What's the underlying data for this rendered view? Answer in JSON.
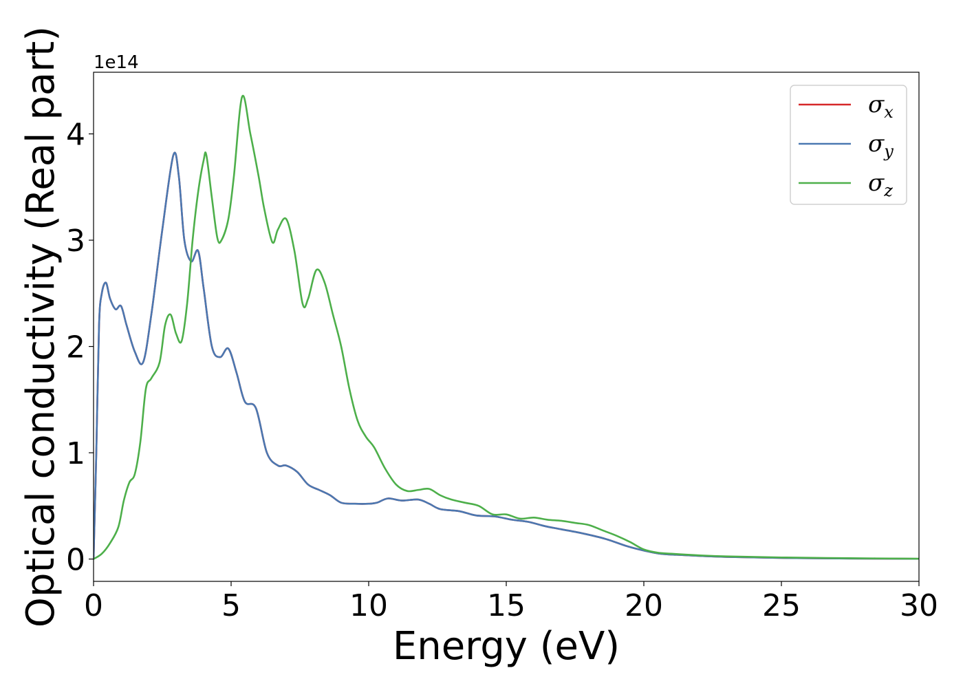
{
  "chart_data": {
    "type": "line",
    "xlabel": "Energy (eV)",
    "ylabel": "Optical conductivity (Real part)",
    "y_offset_label": "1e14",
    "xlim": [
      0,
      30
    ],
    "ylim": [
      -0.21,
      4.58
    ],
    "x_ticks": [
      0,
      5,
      10,
      15,
      20,
      25,
      30
    ],
    "y_ticks": [
      0,
      1,
      2,
      3,
      4
    ],
    "grid": false,
    "legend_position": "top-right",
    "series": [
      {
        "name": "σx",
        "symbol": "σ",
        "subscript": "x",
        "color": "#d62728",
        "x": [
          0,
          0.1,
          0.2,
          0.3,
          0.45,
          0.6,
          0.8,
          1.0,
          1.2,
          1.5,
          1.8,
          2.1,
          2.5,
          2.9,
          3.1,
          3.3,
          3.55,
          3.8,
          4.0,
          4.3,
          4.6,
          4.9,
          5.2,
          5.5,
          5.9,
          6.3,
          6.7,
          7.0,
          7.4,
          7.8,
          8.2,
          8.6,
          9.0,
          9.5,
          10.0,
          10.3,
          10.7,
          11.2,
          11.8,
          12.2,
          12.6,
          13.3,
          13.9,
          14.6,
          15.2,
          15.8,
          16.4,
          17.0,
          17.8,
          18.6,
          19.4,
          20.0,
          20.6,
          21.2,
          22.0,
          23.0,
          25.0,
          27.5,
          30.0
        ],
        "y": [
          0,
          1.0,
          2.2,
          2.5,
          2.6,
          2.45,
          2.35,
          2.38,
          2.2,
          1.95,
          1.85,
          2.3,
          3.1,
          3.8,
          3.6,
          3.0,
          2.8,
          2.9,
          2.55,
          2.0,
          1.9,
          1.98,
          1.75,
          1.48,
          1.42,
          1.0,
          0.88,
          0.88,
          0.82,
          0.7,
          0.65,
          0.6,
          0.53,
          0.52,
          0.52,
          0.53,
          0.57,
          0.55,
          0.56,
          0.52,
          0.47,
          0.45,
          0.41,
          0.4,
          0.37,
          0.35,
          0.31,
          0.28,
          0.24,
          0.19,
          0.12,
          0.08,
          0.05,
          0.04,
          0.03,
          0.02,
          0.01,
          0.005,
          0.002
        ]
      },
      {
        "name": "σy",
        "symbol": "σ",
        "subscript": "y",
        "color": "#4a78b1",
        "x": [
          0,
          0.1,
          0.2,
          0.3,
          0.45,
          0.6,
          0.8,
          1.0,
          1.2,
          1.5,
          1.8,
          2.1,
          2.5,
          2.9,
          3.1,
          3.3,
          3.55,
          3.8,
          4.0,
          4.3,
          4.6,
          4.9,
          5.2,
          5.5,
          5.9,
          6.3,
          6.7,
          7.0,
          7.4,
          7.8,
          8.2,
          8.6,
          9.0,
          9.5,
          10.0,
          10.3,
          10.7,
          11.2,
          11.8,
          12.2,
          12.6,
          13.3,
          13.9,
          14.6,
          15.2,
          15.8,
          16.4,
          17.0,
          17.8,
          18.6,
          19.4,
          20.0,
          20.6,
          21.2,
          22.0,
          23.0,
          25.0,
          27.5,
          30.0
        ],
        "y": [
          0,
          1.0,
          2.2,
          2.5,
          2.6,
          2.45,
          2.35,
          2.38,
          2.2,
          1.95,
          1.85,
          2.3,
          3.1,
          3.8,
          3.6,
          3.0,
          2.8,
          2.9,
          2.55,
          2.0,
          1.9,
          1.98,
          1.75,
          1.48,
          1.42,
          1.0,
          0.88,
          0.88,
          0.82,
          0.7,
          0.65,
          0.6,
          0.53,
          0.52,
          0.52,
          0.53,
          0.57,
          0.55,
          0.56,
          0.52,
          0.47,
          0.45,
          0.41,
          0.4,
          0.37,
          0.35,
          0.31,
          0.28,
          0.24,
          0.19,
          0.12,
          0.08,
          0.05,
          0.04,
          0.03,
          0.02,
          0.01,
          0.005,
          0.002
        ]
      },
      {
        "name": "σz",
        "symbol": "σ",
        "subscript": "z",
        "color": "#4daf4a",
        "x": [
          0,
          0.3,
          0.6,
          0.9,
          1.1,
          1.3,
          1.5,
          1.7,
          1.9,
          2.1,
          2.4,
          2.6,
          2.8,
          3.0,
          3.2,
          3.4,
          3.6,
          3.8,
          4.0,
          4.1,
          4.3,
          4.5,
          4.65,
          4.9,
          5.1,
          5.4,
          5.7,
          6.0,
          6.2,
          6.5,
          6.7,
          7.0,
          7.3,
          7.6,
          7.8,
          8.1,
          8.4,
          8.7,
          9.0,
          9.3,
          9.6,
          9.9,
          10.2,
          10.6,
          11.0,
          11.4,
          11.8,
          12.2,
          12.6,
          13.0,
          13.5,
          14.0,
          14.5,
          15.0,
          15.5,
          16.0,
          16.5,
          17.0,
          17.5,
          18.0,
          18.5,
          19.0,
          19.5,
          20.0,
          20.5,
          21.0,
          22.0,
          23.0,
          25.0,
          27.5,
          30.0
        ],
        "y": [
          0,
          0.05,
          0.15,
          0.3,
          0.55,
          0.72,
          0.8,
          1.1,
          1.6,
          1.7,
          1.85,
          2.2,
          2.3,
          2.12,
          2.05,
          2.4,
          3.0,
          3.45,
          3.75,
          3.8,
          3.4,
          3.02,
          3.0,
          3.2,
          3.6,
          4.35,
          4.0,
          3.6,
          3.3,
          2.98,
          3.1,
          3.2,
          2.9,
          2.4,
          2.45,
          2.72,
          2.6,
          2.3,
          2.0,
          1.6,
          1.3,
          1.15,
          1.05,
          0.85,
          0.7,
          0.64,
          0.65,
          0.66,
          0.6,
          0.56,
          0.53,
          0.5,
          0.42,
          0.42,
          0.38,
          0.39,
          0.37,
          0.36,
          0.34,
          0.32,
          0.27,
          0.22,
          0.16,
          0.09,
          0.06,
          0.05,
          0.035,
          0.025,
          0.015,
          0.008,
          0.003
        ]
      }
    ]
  }
}
